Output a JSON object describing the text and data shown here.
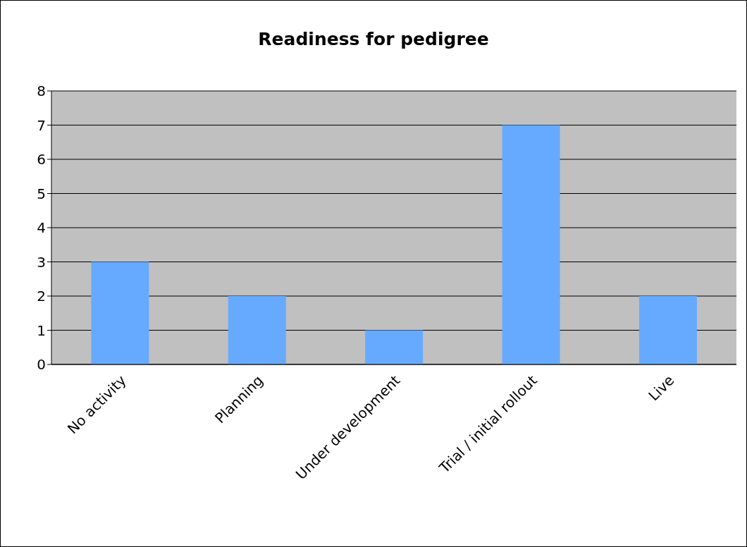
{
  "chart_data": {
    "type": "bar",
    "title": "Readiness for pedigree",
    "categories": [
      "No activity",
      "Planning",
      "Under development",
      "Trial / initial rollout",
      "Live"
    ],
    "values": [
      3,
      2,
      1,
      7,
      2
    ],
    "color": "#66aaff",
    "ylim": [
      0,
      8
    ],
    "yticks": [
      0,
      1,
      2,
      3,
      4,
      5,
      6,
      7,
      8
    ],
    "grid": "y"
  }
}
